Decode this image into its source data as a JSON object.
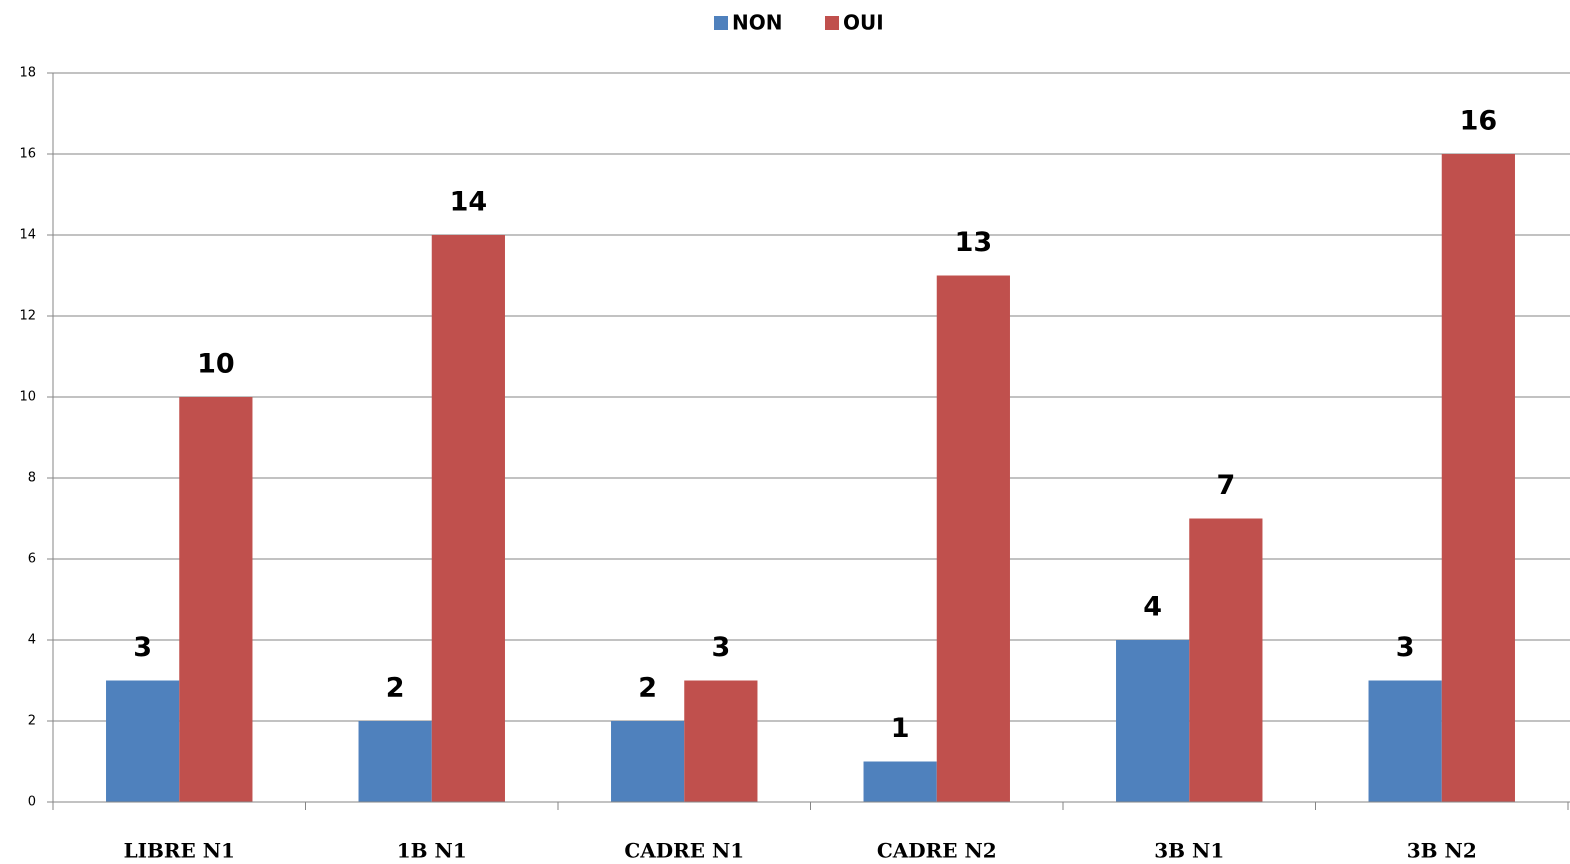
{
  "chart_data": {
    "type": "bar",
    "categories": [
      "LIBRE N1",
      "1B N1",
      "CADRE N1",
      "CADRE N2",
      "3B N1",
      "3B N2"
    ],
    "series": [
      {
        "name": "NON",
        "color": "#4f81bd",
        "values": [
          3,
          2,
          2,
          1,
          4,
          3
        ]
      },
      {
        "name": "OUI",
        "color": "#c0504d",
        "values": [
          10,
          14,
          3,
          13,
          7,
          16
        ]
      }
    ],
    "ylim": [
      0,
      18
    ],
    "yticks": [
      0,
      2,
      4,
      6,
      8,
      10,
      12,
      14,
      16,
      18
    ],
    "grid": true,
    "legend": "top"
  }
}
